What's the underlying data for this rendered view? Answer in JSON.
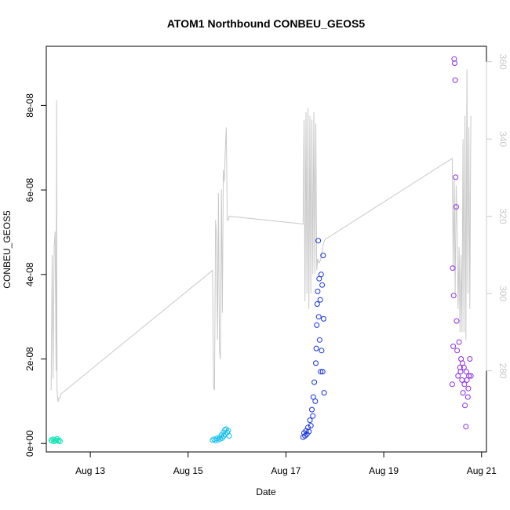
{
  "chart_data": {
    "type": "scatter",
    "title": "ATOM1 Northbound CONBEU_GEOS5",
    "xlabel": "Date",
    "ylabel": "CONBEU_GEOS5",
    "y2label": "",
    "x_range_days": [
      12.1,
      21.1
    ],
    "x_ticks": [
      {
        "day": 13,
        "label": "Aug 13"
      },
      {
        "day": 15,
        "label": "Aug 15"
      },
      {
        "day": 17,
        "label": "Aug 17"
      },
      {
        "day": 19,
        "label": "Aug 19"
      },
      {
        "day": 21,
        "label": "Aug 21"
      }
    ],
    "ylim": [
      -2e-09,
      9.4e-08
    ],
    "y_ticks": [
      "0e+00",
      "2e-08",
      "4e-08",
      "6e-08",
      "8e-08"
    ],
    "y_tick_values": [
      0,
      2e-08,
      4e-08,
      6e-08,
      8e-08
    ],
    "y2lim": [
      259,
      364
    ],
    "y2_ticks": [
      280,
      300,
      320,
      340,
      360
    ],
    "grid": false,
    "legend": "none",
    "colors": {
      "line": "#c8c8c8",
      "aug12": "#17e6b4",
      "aug15": "#17c0ea",
      "aug17": "#1632e0",
      "aug20": "#8a2be8"
    },
    "line_series_secondary_axis": {
      "name": "",
      "x": [
        12.2,
        12.22,
        12.24,
        12.26,
        12.28,
        12.3,
        12.31,
        12.32,
        12.34,
        12.36,
        12.38,
        12.4,
        15.5,
        15.52,
        15.54,
        15.56,
        15.58,
        15.6,
        15.62,
        15.64,
        15.66,
        15.68,
        15.7,
        15.72,
        15.74,
        15.76,
        15.78,
        15.8,
        15.82,
        15.84,
        17.35,
        17.37,
        17.39,
        17.41,
        17.43,
        17.45,
        17.47,
        17.49,
        17.51,
        17.53,
        17.55,
        17.57,
        17.59,
        17.61,
        17.63,
        17.65,
        17.67,
        17.69,
        17.71,
        17.73,
        17.75,
        17.77,
        17.8,
        20.4,
        20.42,
        20.44,
        20.46,
        20.48,
        20.5,
        20.52,
        20.54,
        20.56,
        20.58,
        20.6,
        20.62,
        20.64,
        20.66,
        20.68,
        20.7,
        20.72,
        20.74,
        20.76,
        20.78
      ],
      "y": [
        275,
        310,
        278,
        312,
        316,
        280,
        350,
        275,
        272,
        273,
        273,
        274,
        306,
        276,
        275,
        319,
        315,
        288,
        326,
        285,
        283,
        327,
        295,
        332,
        329,
        337,
        343,
        319,
        319,
        320,
        318,
        345,
        298,
        347,
        300,
        348,
        296,
        346,
        300,
        345,
        305,
        347,
        305,
        344,
        306,
        309,
        308,
        308,
        309,
        310,
        312,
        313,
        314,
        335,
        306,
        330,
        300,
        328,
        316,
        296,
        312,
        290,
        310,
        290,
        340,
        290,
        346,
        288,
        358,
        300,
        343,
        296,
        346
      ]
    },
    "scatter_groups": [
      {
        "name": "",
        "color": "#17e6b4",
        "points": [
          [
            12.2,
            8e-10
          ],
          [
            12.22,
            6e-10
          ],
          [
            12.24,
            1e-09
          ],
          [
            12.26,
            5e-10
          ],
          [
            12.28,
            9e-10
          ],
          [
            12.3,
            7e-10
          ],
          [
            12.32,
            1.1e-09
          ],
          [
            12.34,
            6e-10
          ],
          [
            12.36,
            8e-10
          ],
          [
            12.38,
            5e-10
          ]
        ]
      },
      {
        "name": "",
        "color": "#17c0ea",
        "points": [
          [
            15.5,
            8e-10
          ],
          [
            15.53,
            1e-09
          ],
          [
            15.56,
            7e-10
          ],
          [
            15.59,
            1.2e-09
          ],
          [
            15.62,
            9e-10
          ],
          [
            15.64,
            1.5e-09
          ],
          [
            15.66,
            1.1e-09
          ],
          [
            15.68,
            2e-09
          ],
          [
            15.7,
            1.3e-09
          ],
          [
            15.72,
            2.6e-09
          ],
          [
            15.73,
            1.8e-09
          ],
          [
            15.75,
            3.2e-09
          ],
          [
            15.76,
            2.2e-09
          ],
          [
            15.78,
            3.4e-09
          ],
          [
            15.8,
            2.6e-09
          ],
          [
            15.82,
            3e-09
          ],
          [
            15.84,
            1.8e-09
          ]
        ]
      },
      {
        "name": "",
        "color": "#1632e0",
        "points": [
          [
            17.35,
            1.5e-09
          ],
          [
            17.37,
            2.5e-09
          ],
          [
            17.39,
            1.8e-09
          ],
          [
            17.41,
            3e-09
          ],
          [
            17.43,
            2.2e-09
          ],
          [
            17.45,
            3.8e-09
          ],
          [
            17.47,
            2.8e-09
          ],
          [
            17.49,
            5.5e-09
          ],
          [
            17.51,
            4.2e-09
          ],
          [
            17.53,
            8e-09
          ],
          [
            17.55,
            6.5e-09
          ],
          [
            17.56,
            1.1e-08
          ],
          [
            17.58,
            1.45e-08
          ],
          [
            17.6,
            1e-08
          ],
          [
            17.61,
            1.9e-08
          ],
          [
            17.62,
            2.25e-08
          ],
          [
            17.63,
            2.8e-08
          ],
          [
            17.64,
            3.3e-08
          ],
          [
            17.65,
            3.6e-08
          ],
          [
            17.66,
            4.8e-08
          ],
          [
            17.67,
            3e-08
          ],
          [
            17.68,
            3.9e-08
          ],
          [
            17.69,
            2.45e-08
          ],
          [
            17.7,
            3.4e-08
          ],
          [
            17.71,
            1.7e-08
          ],
          [
            17.72,
            4e-08
          ],
          [
            17.73,
            2.2e-08
          ],
          [
            17.74,
            3.75e-08
          ],
          [
            17.75,
            1.7e-08
          ],
          [
            17.76,
            4.45e-08
          ],
          [
            17.77,
            2.95e-08
          ],
          [
            17.78,
            1.2e-08
          ]
        ]
      },
      {
        "name": "",
        "color": "#8a2be8",
        "points": [
          [
            20.4,
            1.4e-08
          ],
          [
            20.41,
            4.15e-08
          ],
          [
            20.42,
            2.3e-08
          ],
          [
            20.43,
            3.5e-08
          ],
          [
            20.44,
            9.1e-08
          ],
          [
            20.45,
            9e-08
          ],
          [
            20.46,
            8.6e-08
          ],
          [
            20.47,
            6.3e-08
          ],
          [
            20.48,
            5.6e-08
          ],
          [
            20.49,
            2.9e-08
          ],
          [
            20.5,
            2.2e-08
          ],
          [
            20.52,
            1.6e-08
          ],
          [
            20.54,
            2.4e-08
          ],
          [
            20.56,
            1.8e-08
          ],
          [
            20.58,
            2e-08
          ],
          [
            20.6,
            1.5e-08
          ],
          [
            20.62,
            1.2e-08
          ],
          [
            20.64,
            1.8e-08
          ],
          [
            20.66,
            9e-09
          ],
          [
            20.68,
            4e-09
          ],
          [
            20.7,
            1.5e-08
          ],
          [
            20.72,
            1.1e-08
          ],
          [
            20.74,
            1.6e-08
          ],
          [
            20.76,
            2e-08
          ],
          [
            20.78,
            1.6e-08
          ],
          [
            20.57,
            1.7e-08
          ],
          [
            20.61,
            1.9e-08
          ],
          [
            20.65,
            1.4e-08
          ],
          [
            20.69,
            1.7e-08
          ],
          [
            20.73,
            1.3e-08
          ]
        ]
      }
    ]
  }
}
